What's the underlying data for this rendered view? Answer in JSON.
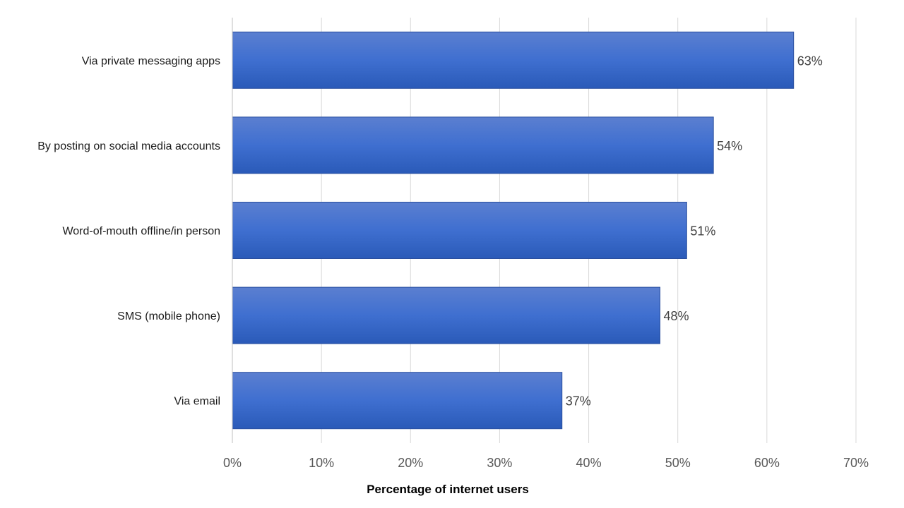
{
  "chart_data": {
    "type": "bar",
    "orientation": "horizontal",
    "categories": [
      "Via private messaging apps",
      "By posting on social media accounts",
      "Word-of-mouth offline/in person",
      "SMS (mobile phone)",
      "Via email"
    ],
    "values": [
      63,
      54,
      51,
      48,
      37
    ],
    "data_labels": [
      "63%",
      "54%",
      "51%",
      "48%",
      "37%"
    ],
    "xlabel": "Percentage of internet users",
    "ylabel": "",
    "xlim": [
      0,
      70
    ],
    "xticks": [
      "0%",
      "10%",
      "20%",
      "30%",
      "40%",
      "50%",
      "60%",
      "70%"
    ],
    "grid": true,
    "legend": "none",
    "colors": {
      "bar_top": "#5B7FD0",
      "bar_mid": "#3F6FD0",
      "bar_bottom": "#2A5AB8",
      "bar_border": "#2A4F9E",
      "gridline": "#D9D9D9",
      "axis_line": "#BFBFBF"
    }
  }
}
